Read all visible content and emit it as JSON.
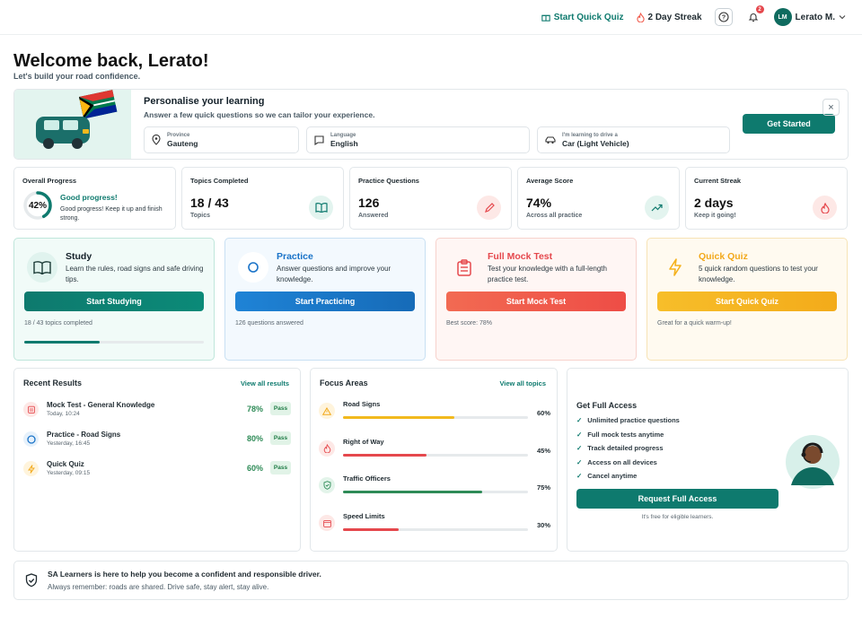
{
  "header": {
    "quick_quiz": "Start Quick Quiz",
    "streak": "2 Day Streak",
    "notifications_count": "2",
    "avatar_initials": "LM",
    "user_name": "Lerato M."
  },
  "welcome": {
    "title": "Welcome back, Lerato!",
    "subtitle": "Let's build your road confidence."
  },
  "personalise": {
    "title": "Personalise your learning",
    "subtitle": "Answer a few quick questions so we can tailor your experience.",
    "province_label": "Province",
    "province_value": "Gauteng",
    "language_label": "Language",
    "language_value": "English",
    "drive_label": "I'm learning to drive a",
    "drive_value": "Car (Light Vehicle)",
    "cta": "Get Started",
    "close": "×"
  },
  "stats": {
    "overall": {
      "title": "Overall Progress",
      "value": "42%",
      "percent": 42,
      "headline": "Good progress!",
      "text": "Good progress! Keep it up and finish strong."
    },
    "topics": {
      "title": "Topics Completed",
      "value": "18 / 43",
      "sub": "Topics"
    },
    "questions": {
      "title": "Practice Questions",
      "value": "126",
      "sub": "Answered"
    },
    "score": {
      "title": "Average Score",
      "value": "74%",
      "sub": "Across all practice"
    },
    "streak": {
      "title": "Current Streak",
      "value": "2 days",
      "sub": "Keep it going!"
    }
  },
  "modes": {
    "study": {
      "title": "Study",
      "desc": "Learn the rules, road signs and safe driving tips.",
      "cta": "Start Studying",
      "foot": "18 / 43 topics completed",
      "progress": 0.42
    },
    "practice": {
      "title": "Practice",
      "desc": "Answer questions and improve your knowledge.",
      "cta": "Start Practicing",
      "foot": "126 questions answered"
    },
    "mock": {
      "title": "Full Mock Test",
      "desc": "Test your knowledge with a full-length practice test.",
      "cta": "Start Mock Test",
      "foot": "Best score: 78%"
    },
    "quiz": {
      "title": "Quick Quiz",
      "desc": "5 quick random questions to test your knowledge.",
      "cta": "Start Quick Quiz",
      "foot": "Great for a quick warm-up!"
    }
  },
  "recent": {
    "title": "Recent Results",
    "link": "View all results",
    "items": [
      {
        "name": "Mock Test - General Knowledge",
        "time": "Today, 10:24",
        "score": "78%",
        "badge": "Pass"
      },
      {
        "name": "Practice - Road Signs",
        "time": "Yesterday, 16:45",
        "score": "80%",
        "badge": "Pass"
      },
      {
        "name": "Quick Quiz",
        "time": "Yesterday, 09:15",
        "score": "60%",
        "badge": "Pass"
      }
    ]
  },
  "focus": {
    "title": "Focus Areas",
    "link": "View all topics",
    "items": [
      {
        "name": "Road Signs",
        "pct": "60%",
        "value": 60,
        "color": "#f2b91e"
      },
      {
        "name": "Right of Way",
        "pct": "45%",
        "value": 45,
        "color": "#e5484d"
      },
      {
        "name": "Traffic Officers",
        "pct": "75%",
        "value": 75,
        "color": "#2e8b57"
      },
      {
        "name": "Speed Limits",
        "pct": "30%",
        "value": 30,
        "color": "#e5484d"
      }
    ]
  },
  "access": {
    "title": "Get Full Access",
    "features": [
      "Unlimited practice questions",
      "Full mock tests anytime",
      "Track detailed progress",
      "Access on all devices",
      "Cancel anytime"
    ],
    "cta": "Request Full Access",
    "note": "It's free for eligible learners."
  },
  "footer": {
    "title": "SA Learners is here to help you become a confident and responsible driver.",
    "text": "Always remember: roads are shared. Drive safe, stay alert, stay alive."
  },
  "colors": {
    "brand": "#0e7a6e",
    "practice": "#1a73c8",
    "mock": "#f0594a",
    "quiz": "#f5b21e"
  }
}
